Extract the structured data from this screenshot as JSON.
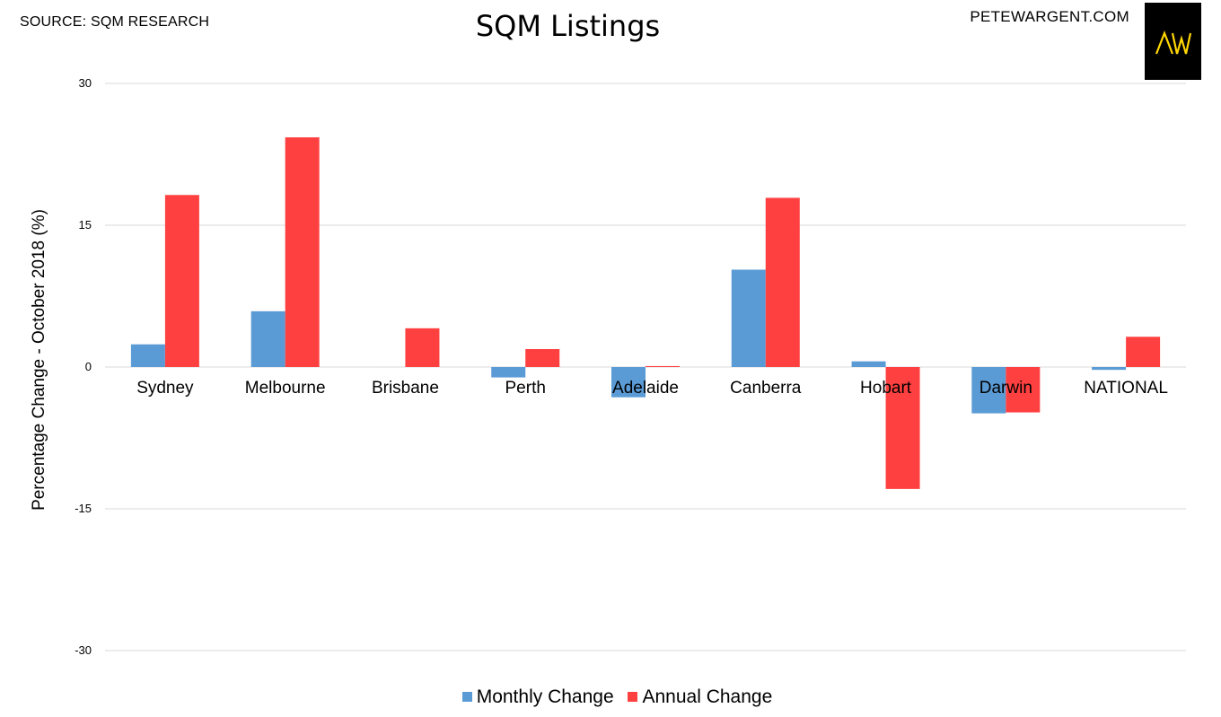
{
  "header": {
    "source": "SOURCE: SQM RESEARCH",
    "site": "PETEWARGENT.COM",
    "logo_text": "AW"
  },
  "colors": {
    "monthly": "#5B9BD5",
    "annual": "#FF4040",
    "gridline": "#D9D9D9",
    "logo_bg": "#000000",
    "logo_fg": "#FFD700"
  },
  "chart_data": {
    "type": "bar",
    "title": "SQM Listings",
    "xlabel": "",
    "ylabel": "Percentage Change - October 2018 (%)",
    "ylim": [
      -30,
      30
    ],
    "yticks": [
      30,
      15,
      0,
      -15,
      -30
    ],
    "grid": true,
    "legend_position": "bottom",
    "categories": [
      "Sydney",
      "Melbourne",
      "Brisbane",
      "Perth",
      "Adelaide",
      "Canberra",
      "Hobart",
      "Darwin",
      "NATIONAL"
    ],
    "series": [
      {
        "name": "Monthly Change",
        "values": [
          2.4,
          5.9,
          0.0,
          -1.1,
          -3.2,
          10.3,
          0.6,
          -4.9,
          -0.3
        ]
      },
      {
        "name": "Annual Change",
        "values": [
          18.2,
          24.3,
          4.1,
          1.9,
          0.1,
          17.9,
          -12.9,
          -4.8,
          3.2
        ]
      }
    ]
  }
}
